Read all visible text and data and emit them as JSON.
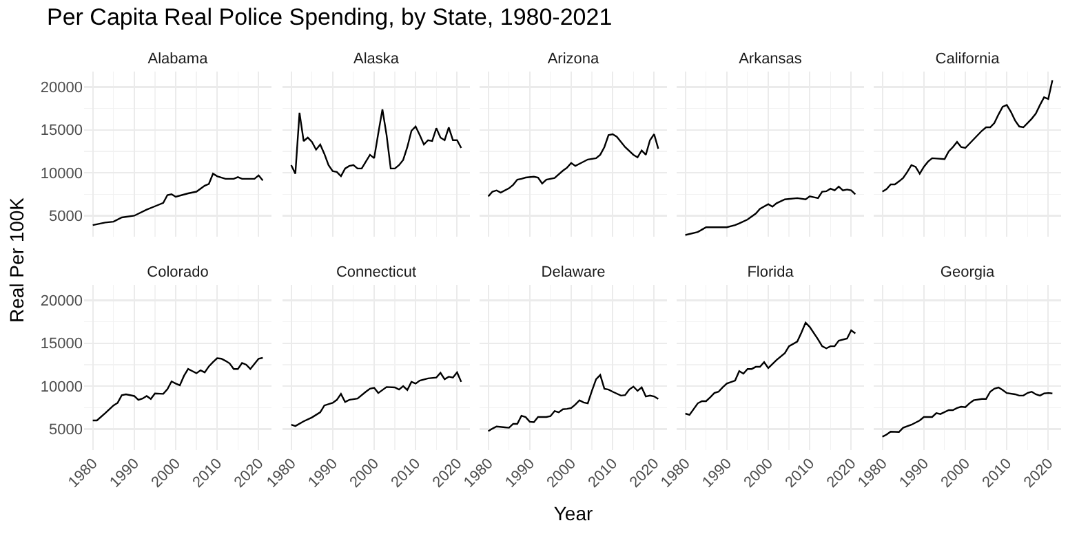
{
  "chart_data": [
    {
      "type": "line",
      "title": "Alabama",
      "annotations": [
        "Per Capita Real Police Spending, by State, 1980-2021"
      ],
      "ylabel": "Real Per 100K",
      "color": "#000000",
      "grid": true,
      "tick_labels": "y",
      "xlim": [
        1977.9,
        2023.1
      ],
      "ylim": [
        2550,
        21800
      ],
      "xticks": [
        1980,
        1990,
        2000,
        2010,
        2020
      ],
      "yticks": [
        5000,
        10000,
        15000,
        20000
      ],
      "x": [
        1980,
        1983,
        1985,
        1987,
        1990,
        1993,
        1995,
        1997,
        1998,
        1999,
        2000,
        2003,
        2005,
        2007,
        2008,
        2009,
        2010,
        2012,
        2014,
        2015,
        2016,
        2018,
        2019,
        2020,
        2021
      ],
      "values": [
        3900,
        4200,
        4300,
        4800,
        5000,
        5700,
        6100,
        6500,
        7400,
        7500,
        7200,
        7600,
        7800,
        8500,
        8700,
        9900,
        9600,
        9300,
        9300,
        9500,
        9300,
        9300,
        9300,
        9700,
        9100
      ]
    },
    {
      "type": "line",
      "title": "Alaska",
      "color": "#000000",
      "grid": true,
      "tick_labels": false,
      "xlim": [
        1977.9,
        2023.1
      ],
      "ylim": [
        2550,
        21800
      ],
      "xticks": [
        1980,
        1990,
        2000,
        2010,
        2020
      ],
      "yticks": [
        5000,
        10000,
        15000,
        20000
      ],
      "x": [
        1980,
        1981,
        1982,
        1983,
        1984,
        1985,
        1986,
        1987,
        1988,
        1989,
        1990,
        1991,
        1992,
        1993,
        1994,
        1995,
        1996,
        1997,
        1998,
        1999,
        2000,
        2001,
        2002,
        2003,
        2004,
        2005,
        2006,
        2007,
        2008,
        2009,
        2010,
        2011,
        2012,
        2013,
        2014,
        2015,
        2016,
        2017,
        2018,
        2019,
        2020,
        2021
      ],
      "values": [
        10900,
        9900,
        17000,
        13700,
        14100,
        13600,
        12700,
        13300,
        12200,
        10900,
        10200,
        10100,
        9600,
        10500,
        10800,
        10900,
        10500,
        10500,
        11300,
        12100,
        11700,
        14600,
        17400,
        14400,
        10500,
        10500,
        10900,
        11500,
        13000,
        14900,
        15400,
        14400,
        13300,
        13800,
        13700,
        15200,
        14100,
        13800,
        15300,
        13800,
        13800,
        12900
      ]
    },
    {
      "type": "line",
      "title": "Arizona",
      "color": "#000000",
      "grid": true,
      "tick_labels": false,
      "xlim": [
        1977.9,
        2023.1
      ],
      "ylim": [
        2550,
        21800
      ],
      "xticks": [
        1980,
        1990,
        2000,
        2010,
        2020
      ],
      "yticks": [
        5000,
        10000,
        15000,
        20000
      ],
      "x": [
        1980,
        1981,
        1982,
        1983,
        1985,
        1986,
        1987,
        1988,
        1989,
        1991,
        1992,
        1993,
        1994,
        1996,
        1998,
        1999,
        2000,
        2001,
        2002,
        2004,
        2006,
        2007,
        2008,
        2009,
        2010,
        2011,
        2013,
        2015,
        2016,
        2017,
        2018,
        2019,
        2020,
        2021
      ],
      "values": [
        7250,
        7800,
        7950,
        7700,
        8200,
        8600,
        9200,
        9300,
        9450,
        9550,
        9450,
        8750,
        9200,
        9400,
        10250,
        10600,
        11150,
        10800,
        11050,
        11550,
        11700,
        12100,
        13000,
        14400,
        14500,
        14200,
        13000,
        12100,
        11800,
        12600,
        12100,
        13800,
        14500,
        12800
      ]
    },
    {
      "type": "line",
      "title": "Arkansas",
      "color": "#000000",
      "grid": true,
      "tick_labels": false,
      "xlim": [
        1977.9,
        2023.1
      ],
      "ylim": [
        2550,
        21800
      ],
      "xticks": [
        1980,
        1990,
        2000,
        2010,
        2020
      ],
      "yticks": [
        5000,
        10000,
        15000,
        20000
      ],
      "x": [
        1980,
        1983,
        1985,
        1990,
        1992,
        1993,
        1995,
        1997,
        1998,
        2000,
        2001,
        2002,
        2004,
        2007,
        2009,
        2010,
        2011,
        2012,
        2013,
        2014,
        2015,
        2016,
        2017,
        2018,
        2019,
        2020,
        2021
      ],
      "values": [
        2750,
        3100,
        3650,
        3650,
        3900,
        4100,
        4550,
        5250,
        5800,
        6350,
        6050,
        6450,
        6900,
        7050,
        6900,
        7250,
        7150,
        7050,
        7800,
        7850,
        8150,
        7950,
        8400,
        7950,
        8050,
        7950,
        7500
      ]
    },
    {
      "type": "line",
      "title": "California",
      "color": "#000000",
      "grid": true,
      "tick_labels": false,
      "xlim": [
        1977.9,
        2023.1
      ],
      "ylim": [
        2550,
        21800
      ],
      "xticks": [
        1980,
        1990,
        2000,
        2010,
        2020
      ],
      "yticks": [
        5000,
        10000,
        15000,
        20000
      ],
      "x": [
        1980,
        1981,
        1982,
        1983,
        1984,
        1985,
        1986,
        1987,
        1988,
        1989,
        1990,
        1991,
        1992,
        1995,
        1996,
        1997,
        1998,
        1999,
        2000,
        2002,
        2004,
        2005,
        2006,
        2007,
        2008,
        2009,
        2010,
        2011,
        2012,
        2013,
        2014,
        2015,
        2016,
        2017,
        2018,
        2019,
        2020,
        2021
      ],
      "values": [
        7800,
        8100,
        8650,
        8650,
        9000,
        9400,
        10100,
        10900,
        10700,
        9900,
        10700,
        11300,
        11700,
        11600,
        12500,
        13000,
        13600,
        13000,
        12900,
        13900,
        14900,
        15300,
        15300,
        15800,
        16800,
        17700,
        17900,
        17100,
        16100,
        15400,
        15300,
        15800,
        16300,
        16900,
        17900,
        18800,
        18600,
        20800
      ]
    },
    {
      "type": "line",
      "title": "Colorado",
      "color": "#000000",
      "grid": true,
      "xlim": [
        1977.9,
        2023.1
      ],
      "ylim": [
        2550,
        21800
      ],
      "xticks": [
        1980,
        1990,
        2000,
        2010,
        2020
      ],
      "yticks": [
        5000,
        10000,
        15000,
        20000
      ],
      "x": [
        1980,
        1981,
        1983,
        1985,
        1986,
        1987,
        1988,
        1990,
        1991,
        1992,
        1993,
        1994,
        1995,
        1997,
        1998,
        1999,
        2000,
        2001,
        2002,
        2003,
        2004,
        2005,
        2006,
        2007,
        2008,
        2009,
        2010,
        2011,
        2012,
        2013,
        2014,
        2015,
        2016,
        2017,
        2018,
        2019,
        2020,
        2021
      ],
      "values": [
        6000,
        6000,
        6850,
        7750,
        8050,
        8950,
        9050,
        8850,
        8400,
        8550,
        8850,
        8500,
        9150,
        9100,
        9650,
        10550,
        10300,
        10100,
        11200,
        12000,
        11750,
        11500,
        11850,
        11600,
        12300,
        12800,
        13250,
        13200,
        12950,
        12650,
        12000,
        12000,
        12700,
        12500,
        12000,
        12600,
        13200,
        13300
      ]
    },
    {
      "type": "line",
      "title": "Connecticut",
      "color": "#000000",
      "grid": true,
      "tick_labels": "x",
      "xlim": [
        1977.9,
        2023.1
      ],
      "ylim": [
        2550,
        21800
      ],
      "xticks": [
        1980,
        1990,
        2000,
        2010,
        2020
      ],
      "yticks": [
        5000,
        10000,
        15000,
        20000
      ],
      "x": [
        1980,
        1981,
        1983,
        1985,
        1987,
        1988,
        1990,
        1991,
        1992,
        1993,
        1994,
        1996,
        1998,
        1999,
        2000,
        2001,
        2003,
        2005,
        2006,
        2007,
        2008,
        2009,
        2010,
        2011,
        2013,
        2015,
        2016,
        2017,
        2018,
        2019,
        2020,
        2021
      ],
      "values": [
        5500,
        5350,
        5900,
        6350,
        6950,
        7750,
        8050,
        8400,
        9100,
        8150,
        8400,
        8550,
        9350,
        9700,
        9800,
        9200,
        9900,
        9850,
        9600,
        10000,
        9550,
        10500,
        10300,
        10650,
        10900,
        11000,
        11550,
        10800,
        11100,
        11000,
        11600,
        10500
      ]
    },
    {
      "type": "line",
      "title": "Delaware",
      "xlabel": "Year",
      "color": "#000000",
      "grid": true,
      "tick_labels": "x",
      "xlim": [
        1977.9,
        2023.1
      ],
      "ylim": [
        2550,
        21800
      ],
      "xticks": [
        1980,
        1990,
        2000,
        2010,
        2020
      ],
      "yticks": [
        5000,
        10000,
        15000,
        20000
      ],
      "x": [
        1980,
        1981,
        1982,
        1984,
        1985,
        1986,
        1987,
        1988,
        1989,
        1990,
        1991,
        1992,
        1994,
        1995,
        1996,
        1997,
        1998,
        1999,
        2000,
        2001,
        2002,
        2003,
        2004,
        2005,
        2006,
        2007,
        2008,
        2009,
        2010,
        2012,
        2013,
        2014,
        2015,
        2016,
        2017,
        2018,
        2019,
        2020,
        2021
      ],
      "values": [
        4750,
        5050,
        5300,
        5200,
        5150,
        5600,
        5600,
        6550,
        6400,
        5850,
        5800,
        6400,
        6400,
        6500,
        7100,
        6950,
        7300,
        7350,
        7450,
        7850,
        8350,
        8100,
        8000,
        9450,
        10800,
        11300,
        9700,
        9600,
        9350,
        8900,
        8950,
        9600,
        9950,
        9450,
        9850,
        8800,
        8900,
        8800,
        8500
      ]
    },
    {
      "type": "line",
      "title": "Florida",
      "color": "#000000",
      "grid": true,
      "tick_labels": "x",
      "xlim": [
        1977.9,
        2023.1
      ],
      "ylim": [
        2550,
        21800
      ],
      "xticks": [
        1980,
        1990,
        2000,
        2010,
        2020
      ],
      "yticks": [
        5000,
        10000,
        15000,
        20000
      ],
      "x": [
        1980,
        1981,
        1983,
        1984,
        1985,
        1986,
        1987,
        1988,
        1989,
        1990,
        1992,
        1993,
        1994,
        1995,
        1996,
        1997,
        1998,
        1999,
        2000,
        2002,
        2004,
        2005,
        2007,
        2008,
        2009,
        2010,
        2012,
        2013,
        2014,
        2015,
        2016,
        2017,
        2019,
        2020,
        2021
      ],
      "values": [
        6800,
        6650,
        8000,
        8250,
        8250,
        8700,
        9200,
        9350,
        9850,
        10300,
        10650,
        11750,
        11450,
        12000,
        12000,
        12250,
        12250,
        12800,
        12100,
        13050,
        13850,
        14650,
        15200,
        16250,
        17400,
        16900,
        15450,
        14650,
        14400,
        14650,
        14650,
        15300,
        15550,
        16500,
        16150
      ]
    },
    {
      "type": "line",
      "title": "Georgia",
      "color": "#000000",
      "grid": true,
      "tick_labels": "x",
      "xlim": [
        1977.9,
        2023.1
      ],
      "ylim": [
        2550,
        21800
      ],
      "xticks": [
        1980,
        1990,
        2000,
        2010,
        2020
      ],
      "yticks": [
        5000,
        10000,
        15000,
        20000
      ],
      "x": [
        1980,
        1981,
        1982,
        1984,
        1985,
        1987,
        1989,
        1990,
        1992,
        1993,
        1994,
        1996,
        1997,
        1998,
        1999,
        2000,
        2001,
        2002,
        2004,
        2005,
        2006,
        2007,
        2008,
        2009,
        2010,
        2012,
        2013,
        2014,
        2015,
        2016,
        2017,
        2018,
        2019,
        2020,
        2021
      ],
      "values": [
        4100,
        4350,
        4700,
        4650,
        5150,
        5500,
        6000,
        6400,
        6400,
        6850,
        6750,
        7200,
        7200,
        7450,
        7600,
        7550,
        8000,
        8350,
        8500,
        8500,
        9350,
        9700,
        9850,
        9550,
        9200,
        9050,
        8900,
        8900,
        9200,
        9350,
        9050,
        8900,
        9150,
        9200,
        9150
      ]
    }
  ]
}
